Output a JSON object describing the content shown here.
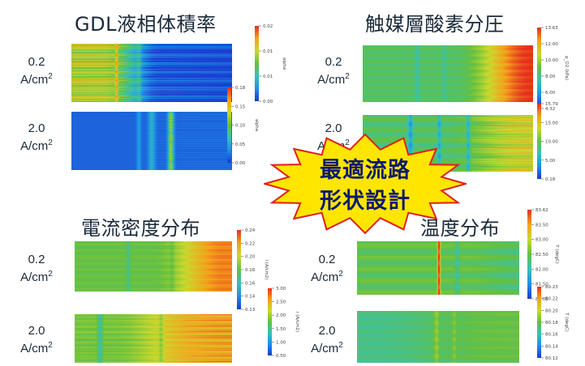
{
  "colors": {
    "scale": [
      "#1a3bd0",
      "#1e8fe8",
      "#35c2b8",
      "#64c040",
      "#c9d92e",
      "#f4a21c",
      "#e6301e"
    ]
  },
  "callout": {
    "line1": "最適流路",
    "line2": "形状設計"
  },
  "panels": [
    {
      "title": "GDL液相体積率",
      "rows": [
        {
          "label_top": "0.2",
          "label_unit": "A/cm",
          "label_sup": "2",
          "field": {
            "type": "heatmap",
            "pattern": "liquid-low",
            "channels": 26
          },
          "colorbar": {
            "ticks": [
              "0.02",
              "0.01",
              "0.01",
              "0.00"
            ],
            "top_label": "0.02",
            "axis_label": "alpha"
          }
        },
        {
          "label_top": "2.0",
          "label_unit": "A/cm",
          "label_sup": "2",
          "field": {
            "type": "heatmap",
            "pattern": "liquid-high",
            "channels": 26
          },
          "colorbar": {
            "ticks": [
              "0.18",
              "0.15",
              "0.10",
              "0.05",
              "0.00"
            ],
            "top_label": "0.18",
            "axis_label": "alpha"
          }
        }
      ]
    },
    {
      "title": "触媒層酸素分圧",
      "rows": [
        {
          "label_top": "0.2",
          "label_unit": "A/cm",
          "label_sup": "2",
          "field": {
            "type": "heatmap",
            "pattern": "oxygen-low",
            "channels": 26
          },
          "colorbar": {
            "ticks": [
              "13.63",
              "12.00",
              "10.00",
              "8.00",
              "6.00",
              "4.32"
            ],
            "top_label": "13.63",
            "axis_label": "p_O2 (kPa)"
          }
        },
        {
          "label_top": "2.0",
          "label_unit": "A/cm",
          "label_sup": "2",
          "field": {
            "type": "heatmap",
            "pattern": "oxygen-high",
            "channels": 26
          },
          "colorbar": {
            "ticks": [
              "15.79",
              "15.00",
              "10.00",
              "5.00",
              "0.18"
            ],
            "top_label": "15.79",
            "axis_label": ""
          }
        }
      ]
    },
    {
      "title": "電流密度分布",
      "rows": [
        {
          "label_top": "0.2",
          "label_unit": "A/cm",
          "label_sup": "2",
          "field": {
            "type": "heatmap",
            "pattern": "current-low",
            "channels": 26
          },
          "colorbar": {
            "ticks": [
              "0.24",
              "0.22",
              "0.20",
              "0.18",
              "0.16",
              "0.14",
              "0.13"
            ],
            "top_label": "0.24",
            "axis_label": "i (A/cm2)"
          }
        },
        {
          "label_top": "2.0",
          "label_unit": "A/cm",
          "label_sup": "2",
          "field": {
            "type": "heatmap",
            "pattern": "current-high",
            "channels": 26
          },
          "colorbar": {
            "ticks": [
              "3.00",
              "2.50",
              "2.00",
              "1.50",
              "1.00",
              "0.50"
            ],
            "top_label": "3.00",
            "axis_label": "i (A/cm2)"
          }
        }
      ]
    },
    {
      "title": "温度分布",
      "rows": [
        {
          "label_top": "0.2",
          "label_unit": "A/cm",
          "label_sup": "2",
          "field": {
            "type": "heatmap",
            "pattern": "temp-low",
            "channels": 26
          },
          "colorbar": {
            "ticks": [
              "83.62",
              "83.50",
              "83.00",
              "82.50",
              "82.00",
              "81.50",
              "81.05"
            ],
            "top_label": "83.62",
            "axis_label": "T (degC)"
          }
        },
        {
          "label_top": "2.0",
          "label_unit": "A/cm",
          "label_sup": "2",
          "field": {
            "type": "heatmap",
            "pattern": "temp-high",
            "channels": 26
          },
          "colorbar": {
            "ticks": [
              "80.23",
              "80.22",
              "80.20",
              "80.18",
              "80.16",
              "80.14",
              "80.12"
            ],
            "top_label": "80.23",
            "axis_label": "T (degC)"
          }
        }
      ]
    }
  ],
  "chart_data": {
    "type": "heatmap",
    "panels": [
      {
        "title": "GDL液相体積率",
        "conditions": [
          "0.2 A/cm2",
          "2.0 A/cm2"
        ],
        "colorbar_ranges": [
          [
            0.0,
            0.02
          ],
          [
            0.0,
            0.18
          ]
        ]
      },
      {
        "title": "触媒層酸素分圧",
        "conditions": [
          "0.2 A/cm2",
          "2.0 A/cm2"
        ],
        "colorbar_ranges": [
          [
            4.32,
            13.63
          ],
          [
            0.18,
            15.79
          ]
        ]
      },
      {
        "title": "電流密度分布",
        "conditions": [
          "0.2 A/cm2",
          "2.0 A/cm2"
        ],
        "colorbar_ranges": [
          [
            0.13,
            0.24
          ],
          [
            0.5,
            3.0
          ]
        ]
      },
      {
        "title": "温度分布",
        "conditions": [
          "0.2 A/cm2",
          "2.0 A/cm2"
        ],
        "colorbar_ranges": [
          [
            81.05,
            83.62
          ],
          [
            80.12,
            80.23
          ]
        ]
      }
    ],
    "legend": "right-of-each-map",
    "grid": false
  }
}
